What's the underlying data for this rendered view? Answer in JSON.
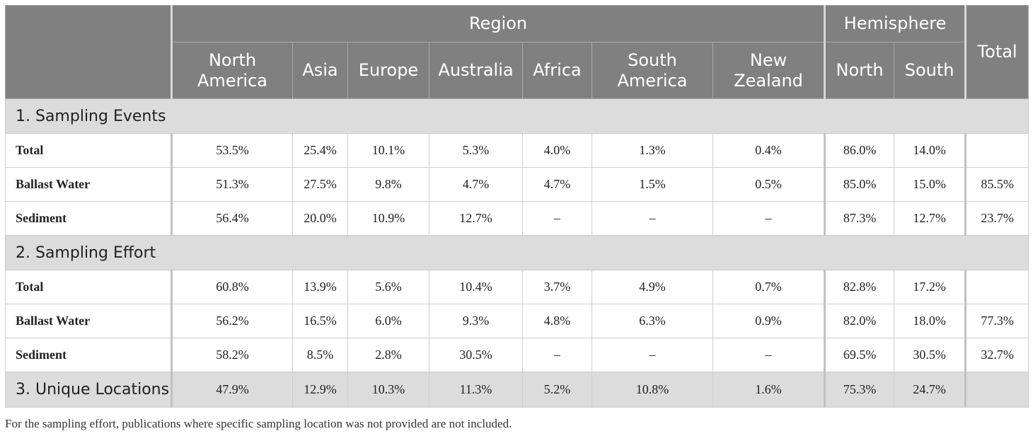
{
  "header": {
    "region_label": "Region",
    "hemisphere_label": "Hemisphere",
    "total_label": "Total",
    "regions": [
      "North\nAmerica",
      "Asia",
      "Europe",
      "Australia",
      "Africa",
      "South\nAmerica",
      "New\nZealand"
    ],
    "hemispheres": [
      "North",
      "South"
    ]
  },
  "sections": [
    {
      "title": "1. Sampling Events",
      "rows": [
        {
          "label": "Total",
          "cells": [
            "53.5%",
            "25.4%",
            "10.1%",
            "5.3%",
            "4.0%",
            "1.3%",
            "0.4%",
            "86.0%",
            "14.0%",
            ""
          ]
        },
        {
          "label": "Ballast Water",
          "cells": [
            "51.3%",
            "27.5%",
            "9.8%",
            "4.7%",
            "4.7%",
            "1.5%",
            "0.5%",
            "85.0%",
            "15.0%",
            "85.5%"
          ]
        },
        {
          "label": "Sediment",
          "cells": [
            "56.4%",
            "20.0%",
            "10.9%",
            "12.7%",
            "–",
            "–",
            "–",
            "87.3%",
            "12.7%",
            "23.7%"
          ]
        }
      ]
    },
    {
      "title": "2. Sampling Effort",
      "rows": [
        {
          "label": "Total",
          "cells": [
            "60.8%",
            "13.9%",
            "5.6%",
            "10.4%",
            "3.7%",
            "4.9%",
            "0.7%",
            "82.8%",
            "17.2%",
            ""
          ]
        },
        {
          "label": "Ballast Water",
          "cells": [
            "56.2%",
            "16.5%",
            "6.0%",
            "9.3%",
            "4.8%",
            "6.3%",
            "0.9%",
            "82.0%",
            "18.0%",
            "77.3%"
          ]
        },
        {
          "label": "Sediment",
          "cells": [
            "58.2%",
            "8.5%",
            "2.8%",
            "30.5%",
            "–",
            "–",
            "–",
            "69.5%",
            "30.5%",
            "32.7%"
          ]
        }
      ]
    }
  ],
  "unique_locations": {
    "label": "3. Unique Locations",
    "cells": [
      "47.9%",
      "12.9%",
      "10.3%",
      "11.3%",
      "5.2%",
      "10.8%",
      "1.6%",
      "75.3%",
      "24.7%",
      ""
    ]
  },
  "footnote": "For the sampling effort, publications where specific sampling location was not provided are not included."
}
